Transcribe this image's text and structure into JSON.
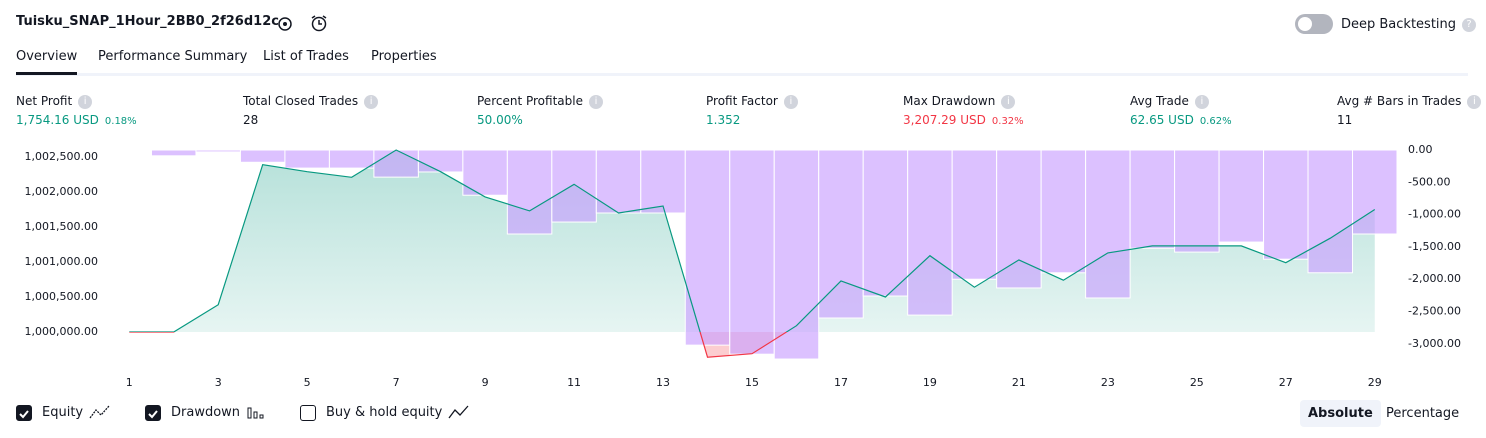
{
  "header": {
    "title": "Tuisku_SNAP_1Hour_2BB0_2f26d12c",
    "deep_backtesting": {
      "label": "Deep Backtesting",
      "enabled": false
    }
  },
  "tabs": {
    "items": [
      "Overview",
      "Performance Summary",
      "List of Trades",
      "Properties"
    ],
    "active": 0
  },
  "stats": [
    {
      "label": "Net Profit",
      "value": "1,754.16 USD",
      "percent": "0.18%",
      "color": "#089981"
    },
    {
      "label": "Total Closed Trades",
      "value": "28",
      "color": "#131722"
    },
    {
      "label": "Percent Profitable",
      "value": "50.00%",
      "color": "#089981"
    },
    {
      "label": "Profit Factor",
      "value": "1.352",
      "color": "#089981"
    },
    {
      "label": "Max Drawdown",
      "value": "3,207.29 USD",
      "percent": "0.32%",
      "color": "#f23645"
    },
    {
      "label": "Avg Trade",
      "value": "62.65 USD",
      "percent": "0.62%",
      "color": "#089981"
    },
    {
      "label": "Avg # Bars in Trades",
      "value": "11",
      "color": "#131722"
    }
  ],
  "chart_data": {
    "type": "combo",
    "grid": false,
    "x": [
      1,
      2,
      3,
      4,
      5,
      6,
      7,
      8,
      9,
      10,
      11,
      12,
      13,
      14,
      15,
      16,
      17,
      18,
      19,
      20,
      21,
      22,
      23,
      24,
      25,
      26,
      27,
      28,
      29
    ],
    "xlim": [
      0.5,
      29.5
    ],
    "xticks": [
      1,
      3,
      5,
      7,
      9,
      11,
      13,
      15,
      17,
      19,
      21,
      23,
      25,
      27,
      29
    ],
    "ylim": [
      999600,
      1002600
    ],
    "yticks": [
      {
        "value": 1000000,
        "label": "1,000,000.00"
      },
      {
        "value": 1000500,
        "label": "1,000,500.00"
      },
      {
        "value": 1001000,
        "label": "1,001,000.00"
      },
      {
        "value": 1001500,
        "label": "1,001,500.00"
      },
      {
        "value": 1002000,
        "label": "1,002,000.00"
      },
      {
        "value": 1002500,
        "label": "1,002,500.00"
      }
    ],
    "y2lim": [
      -3250,
      0
    ],
    "y2ticks": [
      {
        "value": 0,
        "label": "0.00"
      },
      {
        "value": -500,
        "label": "-500.00"
      },
      {
        "value": -1000,
        "label": "-1,000.00"
      },
      {
        "value": -1500,
        "label": "-1,500.00"
      },
      {
        "value": -2000,
        "label": "-2,000.00"
      },
      {
        "value": -2500,
        "label": "-2,500.00"
      },
      {
        "value": -3000,
        "label": "-3,000.00"
      }
    ],
    "series": [
      {
        "name": "Equity",
        "type": "area",
        "color": "#089981",
        "negative_color": "#f23645",
        "checked": true,
        "values": [
          1000000,
          1000000,
          1000390,
          1002390,
          1002290,
          1002210,
          1002600,
          1002290,
          1001930,
          1001730,
          1002110,
          1001700,
          1001800,
          999640,
          999690,
          1000090,
          1000730,
          1000500,
          1001090,
          1000640,
          1001030,
          1000740,
          1001130,
          1001230,
          1001230,
          1001230,
          1000990,
          1001340,
          1001750
        ]
      },
      {
        "name": "Drawdown",
        "type": "bar",
        "axis": "y2",
        "color": "#c9a0ff",
        "checked": true,
        "values": [
          -10,
          -90,
          -30,
          -190,
          -280,
          -280,
          -420,
          -340,
          -700,
          -1300,
          -1115,
          -975,
          -975,
          -3020,
          -3160,
          -3235,
          -2600,
          -2260,
          -2555,
          -2000,
          -2135,
          -1900,
          -2290,
          -1520,
          -1580,
          -1425,
          -1690,
          -1900,
          -1300
        ]
      }
    ],
    "buy_hold": {
      "label": "Buy & hold equity",
      "checked": false
    }
  },
  "modes": {
    "items": [
      "Absolute",
      "Percentage"
    ],
    "active": 0
  }
}
